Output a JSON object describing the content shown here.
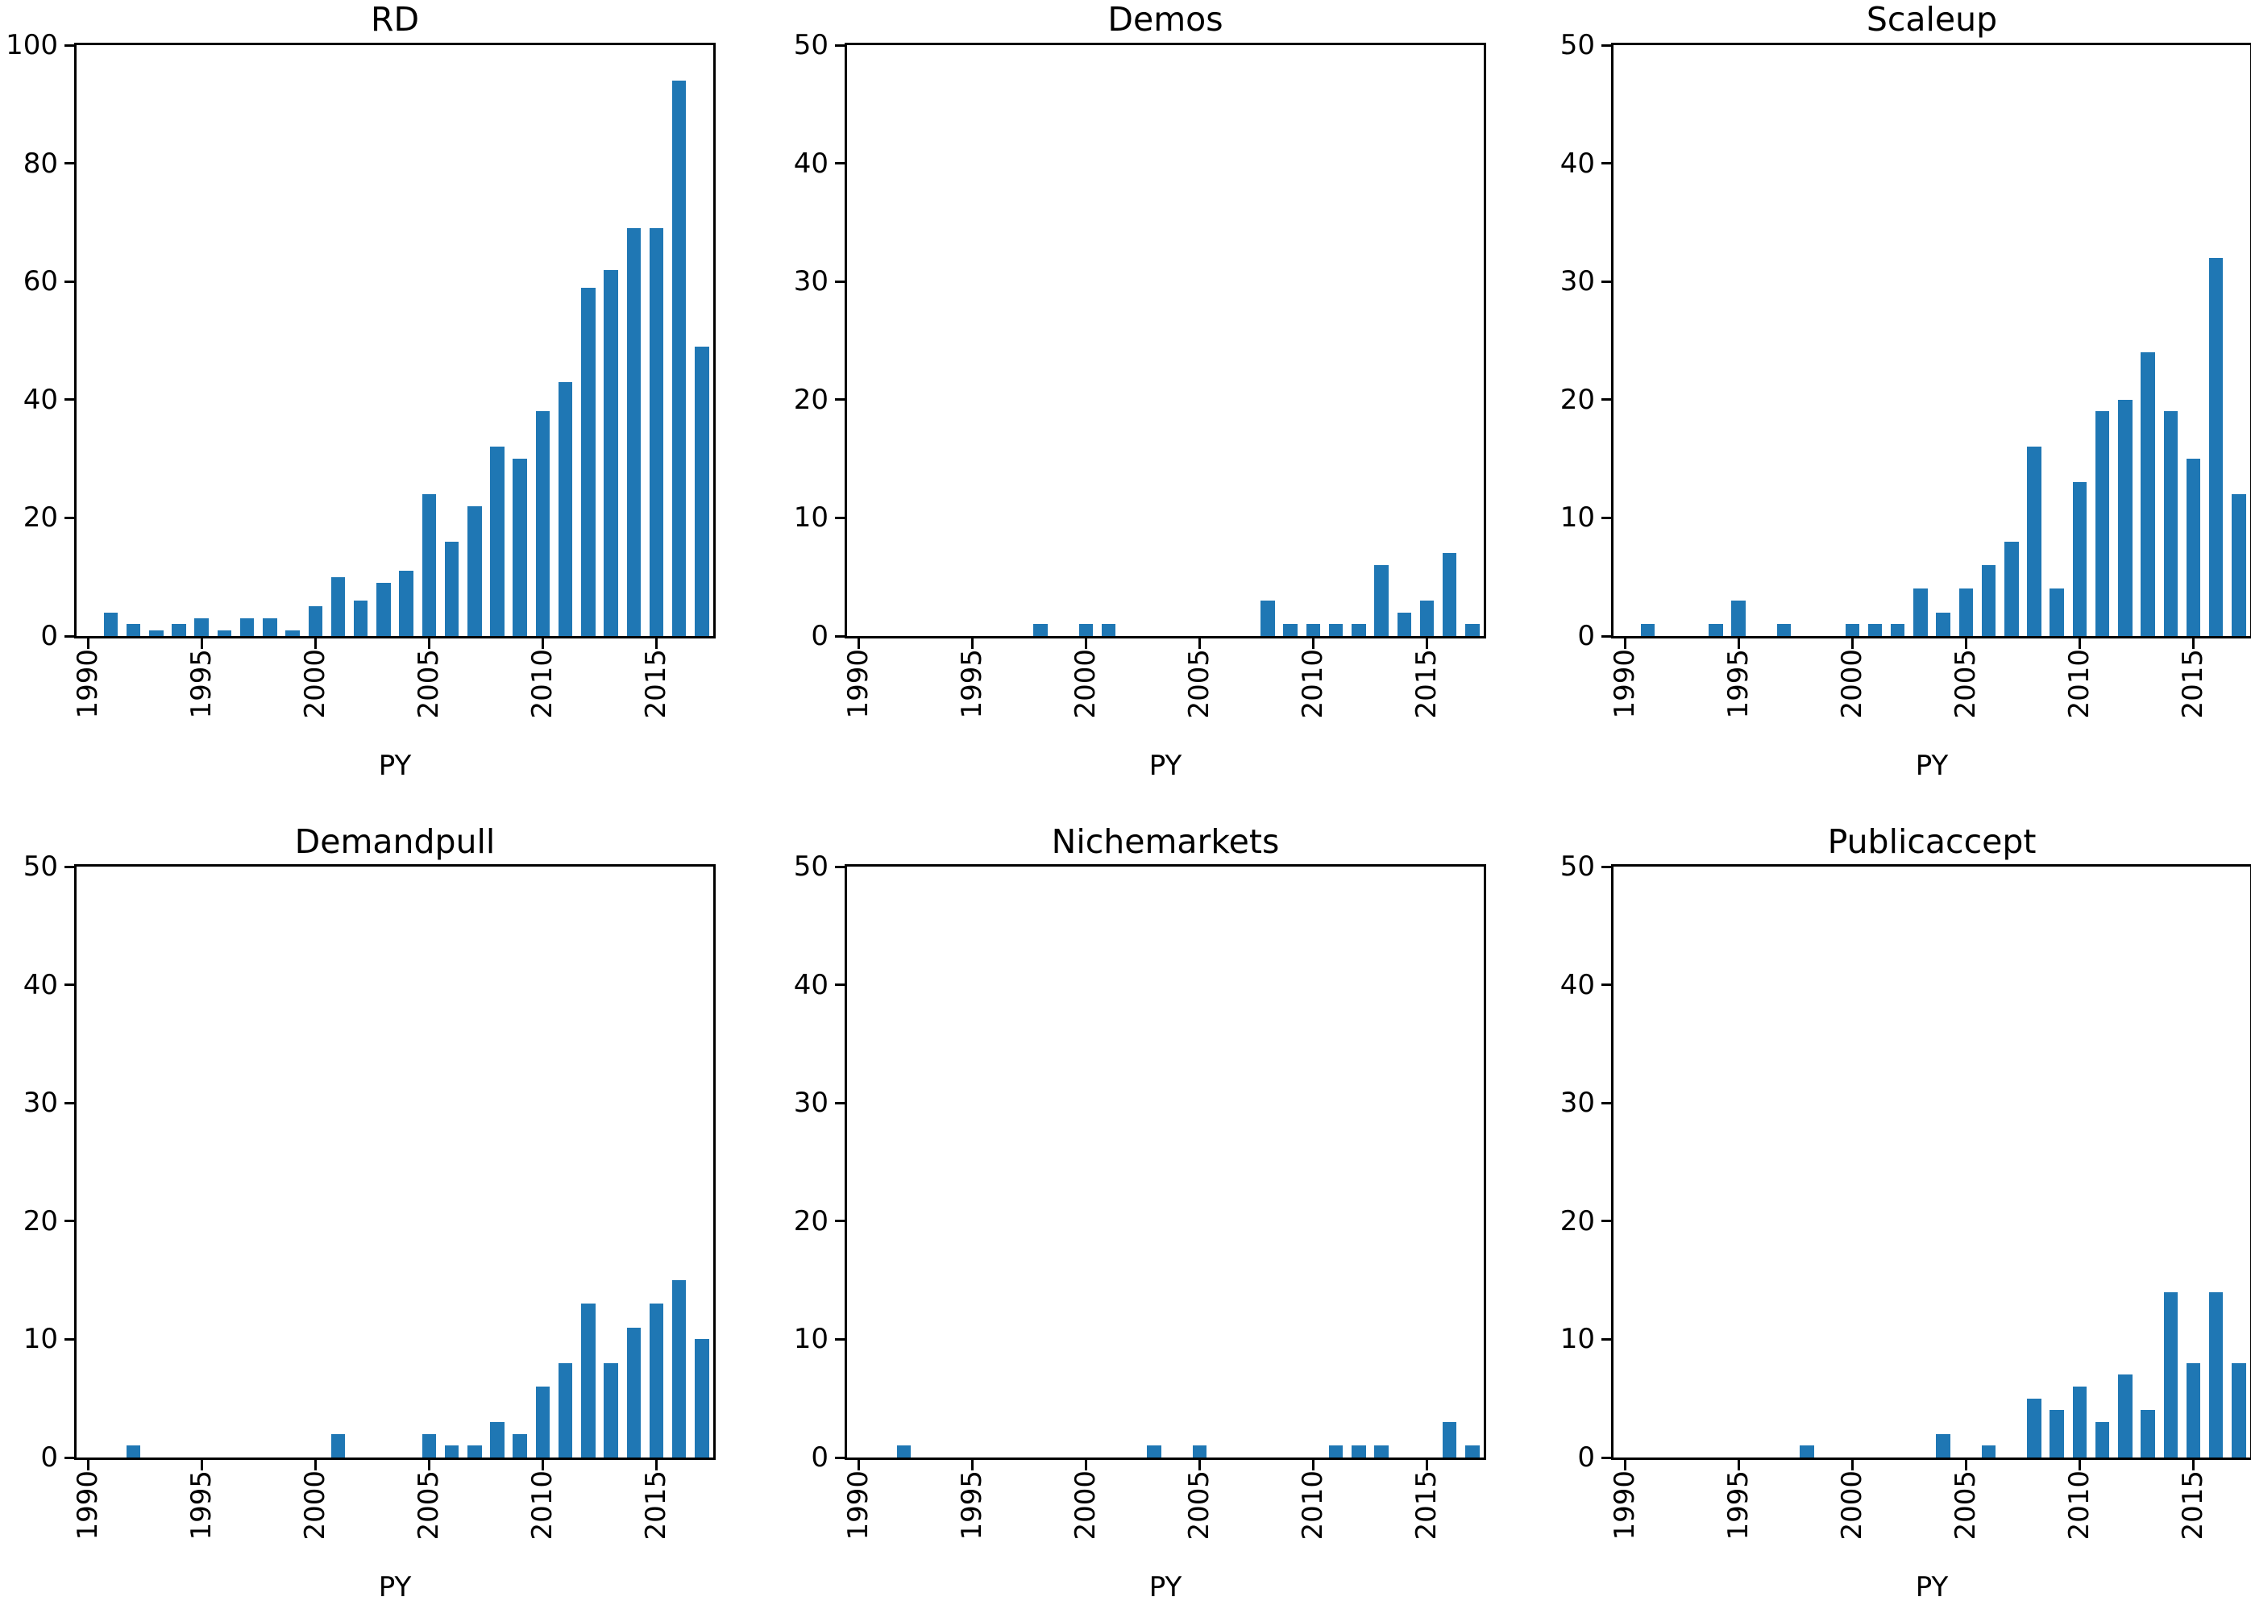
{
  "figure": {
    "background": "#ffffff",
    "bar_color": "#1f77b4",
    "spine_color": "#000000",
    "grid": "off",
    "legend": "none"
  },
  "chart_data": [
    {
      "type": "bar",
      "title": "RD",
      "xlabel": "PY",
      "ylabel": "",
      "ylim": [
        0,
        100
      ],
      "xlim": [
        1989.5,
        2017.5
      ],
      "yticks": [
        0,
        20,
        40,
        60,
        80,
        100
      ],
      "xticks": [
        1990,
        1995,
        2000,
        2005,
        2010,
        2015
      ],
      "categories": [
        1990,
        1991,
        1992,
        1993,
        1994,
        1995,
        1996,
        1997,
        1998,
        1999,
        2000,
        2001,
        2002,
        2003,
        2004,
        2005,
        2006,
        2007,
        2008,
        2009,
        2010,
        2011,
        2012,
        2013,
        2014,
        2015,
        2016,
        2017
      ],
      "values": [
        0,
        4,
        2,
        1,
        2,
        3,
        1,
        3,
        3,
        1,
        5,
        10,
        6,
        9,
        11,
        24,
        16,
        22,
        32,
        30,
        38,
        43,
        59,
        62,
        69,
        69,
        94,
        49
      ]
    },
    {
      "type": "bar",
      "title": "Demos",
      "xlabel": "PY",
      "ylabel": "",
      "ylim": [
        0,
        50
      ],
      "xlim": [
        1989.5,
        2017.5
      ],
      "yticks": [
        0,
        10,
        20,
        30,
        40,
        50
      ],
      "xticks": [
        1990,
        1995,
        2000,
        2005,
        2010,
        2015
      ],
      "categories": [
        1990,
        1991,
        1992,
        1993,
        1994,
        1995,
        1996,
        1997,
        1998,
        1999,
        2000,
        2001,
        2002,
        2003,
        2004,
        2005,
        2006,
        2007,
        2008,
        2009,
        2010,
        2011,
        2012,
        2013,
        2014,
        2015,
        2016,
        2017
      ],
      "values": [
        0,
        0,
        0,
        0,
        0,
        0,
        0,
        0,
        1,
        0,
        1,
        1,
        0,
        0,
        0,
        0,
        0,
        0,
        3,
        1,
        1,
        1,
        1,
        6,
        2,
        3,
        7,
        1
      ]
    },
    {
      "type": "bar",
      "title": "Scaleup",
      "xlabel": "PY",
      "ylabel": "",
      "ylim": [
        0,
        50
      ],
      "xlim": [
        1989.5,
        2017.5
      ],
      "yticks": [
        0,
        10,
        20,
        30,
        40,
        50
      ],
      "xticks": [
        1990,
        1995,
        2000,
        2005,
        2010,
        2015
      ],
      "categories": [
        1990,
        1991,
        1992,
        1993,
        1994,
        1995,
        1996,
        1997,
        1998,
        1999,
        2000,
        2001,
        2002,
        2003,
        2004,
        2005,
        2006,
        2007,
        2008,
        2009,
        2010,
        2011,
        2012,
        2013,
        2014,
        2015,
        2016,
        2017
      ],
      "values": [
        0,
        1,
        0,
        0,
        1,
        3,
        0,
        1,
        0,
        0,
        1,
        1,
        1,
        4,
        2,
        4,
        6,
        8,
        16,
        4,
        13,
        19,
        20,
        24,
        19,
        15,
        32,
        12
      ]
    },
    {
      "type": "bar",
      "title": "Demandpull",
      "xlabel": "PY",
      "ylabel": "",
      "ylim": [
        0,
        50
      ],
      "xlim": [
        1989.5,
        2017.5
      ],
      "yticks": [
        0,
        10,
        20,
        30,
        40,
        50
      ],
      "xticks": [
        1990,
        1995,
        2000,
        2005,
        2010,
        2015
      ],
      "categories": [
        1990,
        1991,
        1992,
        1993,
        1994,
        1995,
        1996,
        1997,
        1998,
        1999,
        2000,
        2001,
        2002,
        2003,
        2004,
        2005,
        2006,
        2007,
        2008,
        2009,
        2010,
        2011,
        2012,
        2013,
        2014,
        2015,
        2016,
        2017
      ],
      "values": [
        0,
        0,
        1,
        0,
        0,
        0,
        0,
        0,
        0,
        0,
        0,
        2,
        0,
        0,
        0,
        2,
        1,
        1,
        3,
        2,
        6,
        8,
        13,
        8,
        11,
        13,
        15,
        10
      ]
    },
    {
      "type": "bar",
      "title": "Nichemarkets",
      "xlabel": "PY",
      "ylabel": "",
      "ylim": [
        0,
        50
      ],
      "xlim": [
        1989.5,
        2017.5
      ],
      "yticks": [
        0,
        10,
        20,
        30,
        40,
        50
      ],
      "xticks": [
        1990,
        1995,
        2000,
        2005,
        2010,
        2015
      ],
      "categories": [
        1990,
        1991,
        1992,
        1993,
        1994,
        1995,
        1996,
        1997,
        1998,
        1999,
        2000,
        2001,
        2002,
        2003,
        2004,
        2005,
        2006,
        2007,
        2008,
        2009,
        2010,
        2011,
        2012,
        2013,
        2014,
        2015,
        2016,
        2017
      ],
      "values": [
        0,
        0,
        1,
        0,
        0,
        0,
        0,
        0,
        0,
        0,
        0,
        0,
        0,
        1,
        0,
        1,
        0,
        0,
        0,
        0,
        0,
        1,
        1,
        1,
        0,
        0,
        3,
        1
      ]
    },
    {
      "type": "bar",
      "title": "Publicaccept",
      "xlabel": "PY",
      "ylabel": "",
      "ylim": [
        0,
        50
      ],
      "xlim": [
        1989.5,
        2017.5
      ],
      "yticks": [
        0,
        10,
        20,
        30,
        40,
        50
      ],
      "xticks": [
        1990,
        1995,
        2000,
        2005,
        2010,
        2015
      ],
      "categories": [
        1990,
        1991,
        1992,
        1993,
        1994,
        1995,
        1996,
        1997,
        1998,
        1999,
        2000,
        2001,
        2002,
        2003,
        2004,
        2005,
        2006,
        2007,
        2008,
        2009,
        2010,
        2011,
        2012,
        2013,
        2014,
        2015,
        2016,
        2017
      ],
      "values": [
        0,
        0,
        0,
        0,
        0,
        0,
        0,
        0,
        1,
        0,
        0,
        0,
        0,
        0,
        2,
        0,
        1,
        0,
        5,
        4,
        6,
        3,
        7,
        4,
        14,
        8,
        14,
        8
      ]
    }
  ]
}
